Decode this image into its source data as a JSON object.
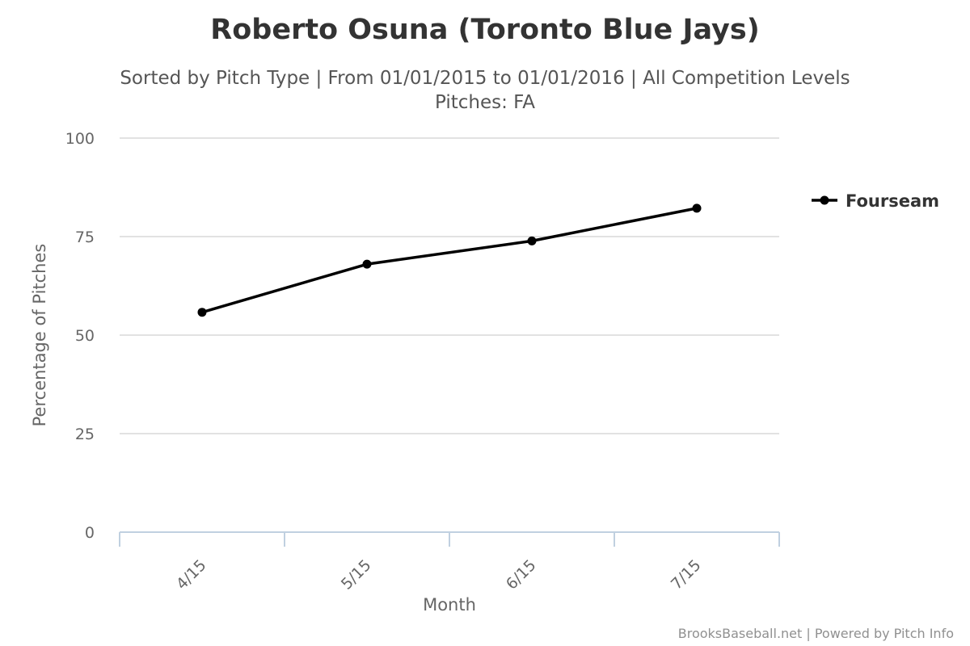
{
  "chart_data": {
    "type": "line",
    "title": "Roberto Osuna (Toronto Blue Jays)",
    "subtitle_line1": "Sorted by Pitch Type | From 01/01/2015 to 01/01/2016 | All Competition Levels",
    "subtitle_line2": "Pitches: FA",
    "xlabel": "Month",
    "ylabel": "Percentage of Pitches",
    "categories": [
      "4/15",
      "5/15",
      "6/15",
      "7/15"
    ],
    "ylim": [
      0,
      100
    ],
    "yticks": [
      "0",
      "25",
      "50",
      "75",
      "100"
    ],
    "grid": true,
    "legend_position": "right",
    "series": [
      {
        "name": "Fourseam",
        "color": "#000000",
        "values": [
          55.8,
          68.0,
          73.9,
          82.2
        ]
      }
    ]
  },
  "credits": "BrooksBaseball.net | Powered by Pitch Info"
}
